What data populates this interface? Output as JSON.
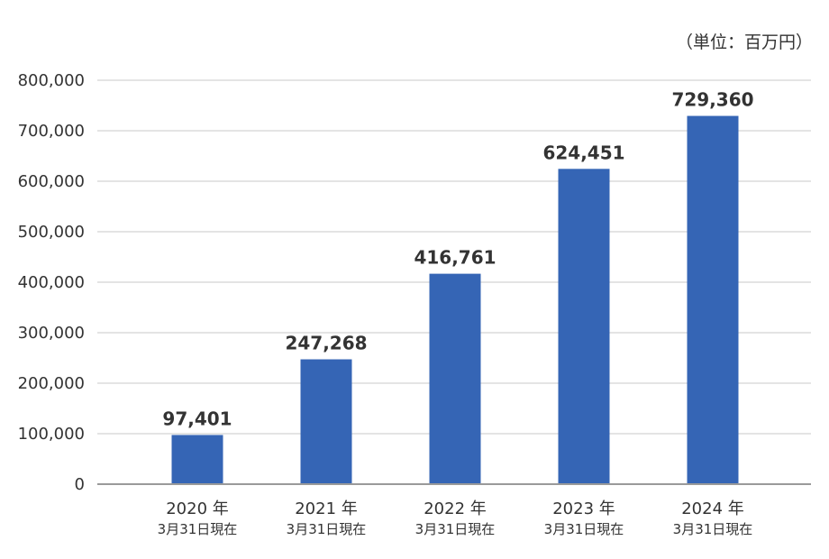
{
  "unit_label": "（単位：百万円）",
  "colors": {
    "bar": "#3565b5",
    "grid": "#c8c8c8",
    "axis": "#9a9a9a",
    "text": "#333333"
  },
  "chart_data": {
    "type": "bar",
    "title": "",
    "xlabel": "",
    "ylabel": "",
    "categories": [
      {
        "year": "2020 年",
        "date": "3月31日現在"
      },
      {
        "year": "2021 年",
        "date": "3月31日現在"
      },
      {
        "year": "2022 年",
        "date": "3月31日現在"
      },
      {
        "year": "2023 年",
        "date": "3月31日現在"
      },
      {
        "year": "2024 年",
        "date": "3月31日現在"
      }
    ],
    "values": [
      97401,
      247268,
      416761,
      624451,
      729360
    ],
    "data_labels": [
      "97,401",
      "247,268",
      "416,761",
      "624,451",
      "729,360"
    ],
    "ylim": [
      0,
      800000
    ],
    "yticks": [
      0,
      100000,
      200000,
      300000,
      400000,
      500000,
      600000,
      700000,
      800000
    ],
    "ytick_labels": [
      "0",
      "100,000",
      "200,000",
      "300,000",
      "400,000",
      "500,000",
      "600,000",
      "700,000",
      "800,000"
    ],
    "grid": true,
    "legend": "none"
  }
}
